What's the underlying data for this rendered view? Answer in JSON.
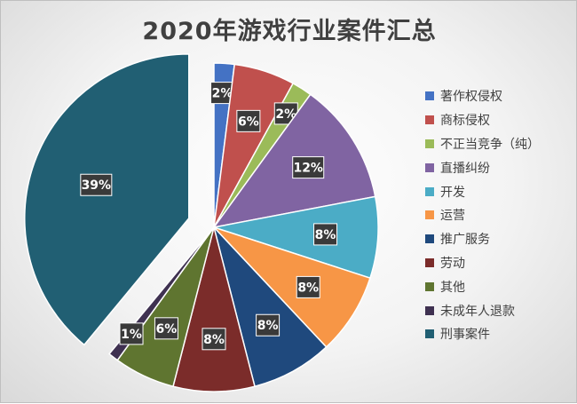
{
  "chart_data": {
    "type": "pie",
    "title": "2020年游戏行业案件汇总",
    "categories": [
      "著作权侵权",
      "商标侵权",
      "不正当竞争（纯）",
      "直播纠纷",
      "开发",
      "运营",
      "推广服务",
      "劳动",
      "其他",
      "未成年人退款",
      "刑事案件"
    ],
    "values": [
      2,
      6,
      2,
      12,
      8,
      8,
      8,
      8,
      6,
      1,
      39
    ],
    "labels": [
      "2%",
      "6%",
      "2%",
      "12%",
      "8%",
      "8%",
      "8%",
      "8%",
      "6%",
      "1%",
      "39%"
    ],
    "colors": [
      "#4472C4",
      "#C0504D",
      "#9BBB59",
      "#8064A2",
      "#4BACC6",
      "#F79646",
      "#1F497D",
      "#7B2C2A",
      "#5F7530",
      "#3F3151",
      "#215F73"
    ],
    "exploded": [
      false,
      false,
      false,
      false,
      false,
      false,
      false,
      false,
      false,
      false,
      true
    ],
    "start_angle_deg": 0,
    "direction": "clockwise",
    "legend_position": "right"
  }
}
